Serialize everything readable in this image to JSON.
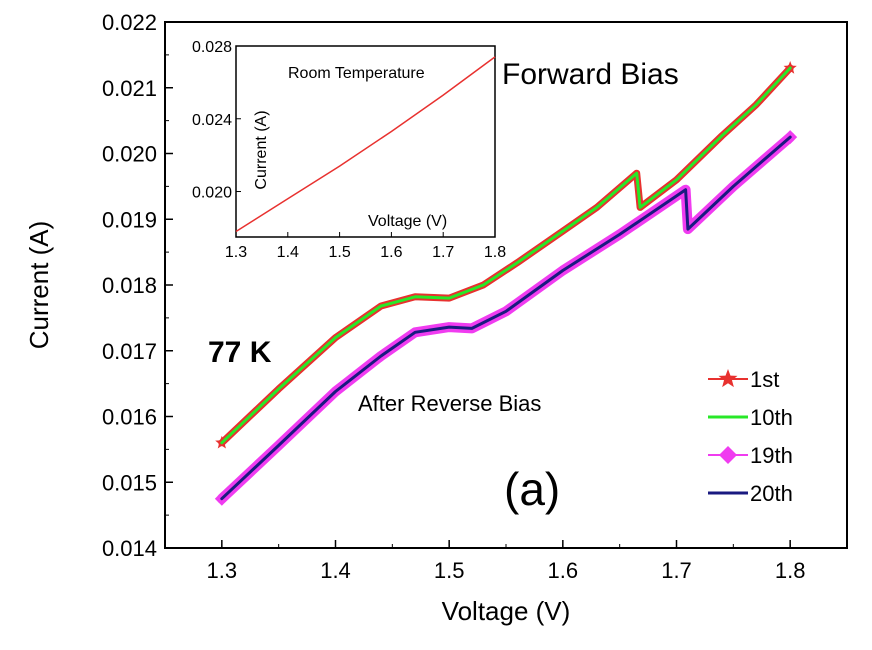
{
  "chart_data": [
    {
      "type": "line",
      "xlabel": "Voltage (V)",
      "ylabel": "Current (A)",
      "xlim": [
        1.25,
        1.85
      ],
      "ylim": [
        0.014,
        0.022
      ],
      "x_ticks": [
        1.3,
        1.4,
        1.5,
        1.6,
        1.7,
        1.8
      ],
      "x_tick_labels": [
        "1.3",
        "1.4",
        "1.5",
        "1.6",
        "1.7",
        "1.8"
      ],
      "y_ticks": [
        0.014,
        0.015,
        0.016,
        0.017,
        0.018,
        0.019,
        0.02,
        0.021,
        0.022
      ],
      "y_tick_labels": [
        "0.014",
        "0.015",
        "0.016",
        "0.017",
        "0.018",
        "0.019",
        "0.020",
        "0.021",
        "0.022"
      ],
      "grid": false,
      "legend_position": "bottom-right",
      "annotations": {
        "temp": "77 K",
        "forward": "Forward Bias",
        "after": "After Reverse Bias",
        "panel": "(a)"
      },
      "series": [
        {
          "name": "1st",
          "color": "#e8312f",
          "marker": "star",
          "x": [
            1.3,
            1.35,
            1.4,
            1.44,
            1.47,
            1.5,
            1.53,
            1.56,
            1.6,
            1.63,
            1.665,
            1.668,
            1.7,
            1.74,
            1.77,
            1.8
          ],
          "y": [
            0.0156,
            0.01642,
            0.0172,
            0.01768,
            0.01782,
            0.0178,
            0.018,
            0.01834,
            0.01882,
            0.01918,
            0.0197,
            0.01918,
            0.0196,
            0.02027,
            0.02074,
            0.0213
          ]
        },
        {
          "name": "10th",
          "color": "#28e828",
          "marker": "none",
          "x": [
            1.3,
            1.35,
            1.4,
            1.44,
            1.47,
            1.5,
            1.53,
            1.56,
            1.6,
            1.63,
            1.665,
            1.668,
            1.7,
            1.74,
            1.77,
            1.8
          ],
          "y": [
            0.0156,
            0.01642,
            0.0172,
            0.01768,
            0.01782,
            0.0178,
            0.018,
            0.01834,
            0.01882,
            0.01918,
            0.0197,
            0.01918,
            0.0196,
            0.02027,
            0.02074,
            0.0213
          ]
        },
        {
          "name": "19th",
          "color": "#f03cf0",
          "marker": "diamond",
          "x": [
            1.3,
            1.35,
            1.4,
            1.44,
            1.47,
            1.5,
            1.52,
            1.55,
            1.6,
            1.65,
            1.708,
            1.71,
            1.75,
            1.8
          ],
          "y": [
            0.01475,
            0.01556,
            0.01638,
            0.01692,
            0.01728,
            0.01736,
            0.01734,
            0.0176,
            0.01822,
            0.01877,
            0.01945,
            0.01885,
            0.0195,
            0.02025
          ]
        },
        {
          "name": "20th",
          "color": "#1a1a80",
          "marker": "none",
          "x": [
            1.3,
            1.35,
            1.4,
            1.44,
            1.47,
            1.5,
            1.52,
            1.55,
            1.6,
            1.65,
            1.708,
            1.71,
            1.75,
            1.8
          ],
          "y": [
            0.01475,
            0.01556,
            0.01638,
            0.01692,
            0.01728,
            0.01736,
            0.01734,
            0.0176,
            0.01822,
            0.01877,
            0.01945,
            0.01885,
            0.0195,
            0.02025
          ]
        }
      ]
    },
    {
      "type": "line",
      "xlabel": "Voltage (V)",
      "ylabel": "Current (A)",
      "xlim": [
        1.3,
        1.8
      ],
      "ylim": [
        0.0175,
        0.028
      ],
      "x_ticks": [
        1.3,
        1.4,
        1.5,
        1.6,
        1.7,
        1.8
      ],
      "x_tick_labels": [
        "1.3",
        "1.4",
        "1.5",
        "1.6",
        "1.7",
        "1.8"
      ],
      "y_ticks": [
        0.02,
        0.024,
        0.028
      ],
      "y_tick_labels": [
        "0.020",
        "0.024",
        "0.028"
      ],
      "annotation": "Room Temperature",
      "series": [
        {
          "color": "#e8312f",
          "x": [
            1.3,
            1.4,
            1.5,
            1.6,
            1.7,
            1.8
          ],
          "y": [
            0.0178,
            0.0196,
            0.0214,
            0.0233,
            0.0253,
            0.0274
          ]
        }
      ]
    }
  ]
}
